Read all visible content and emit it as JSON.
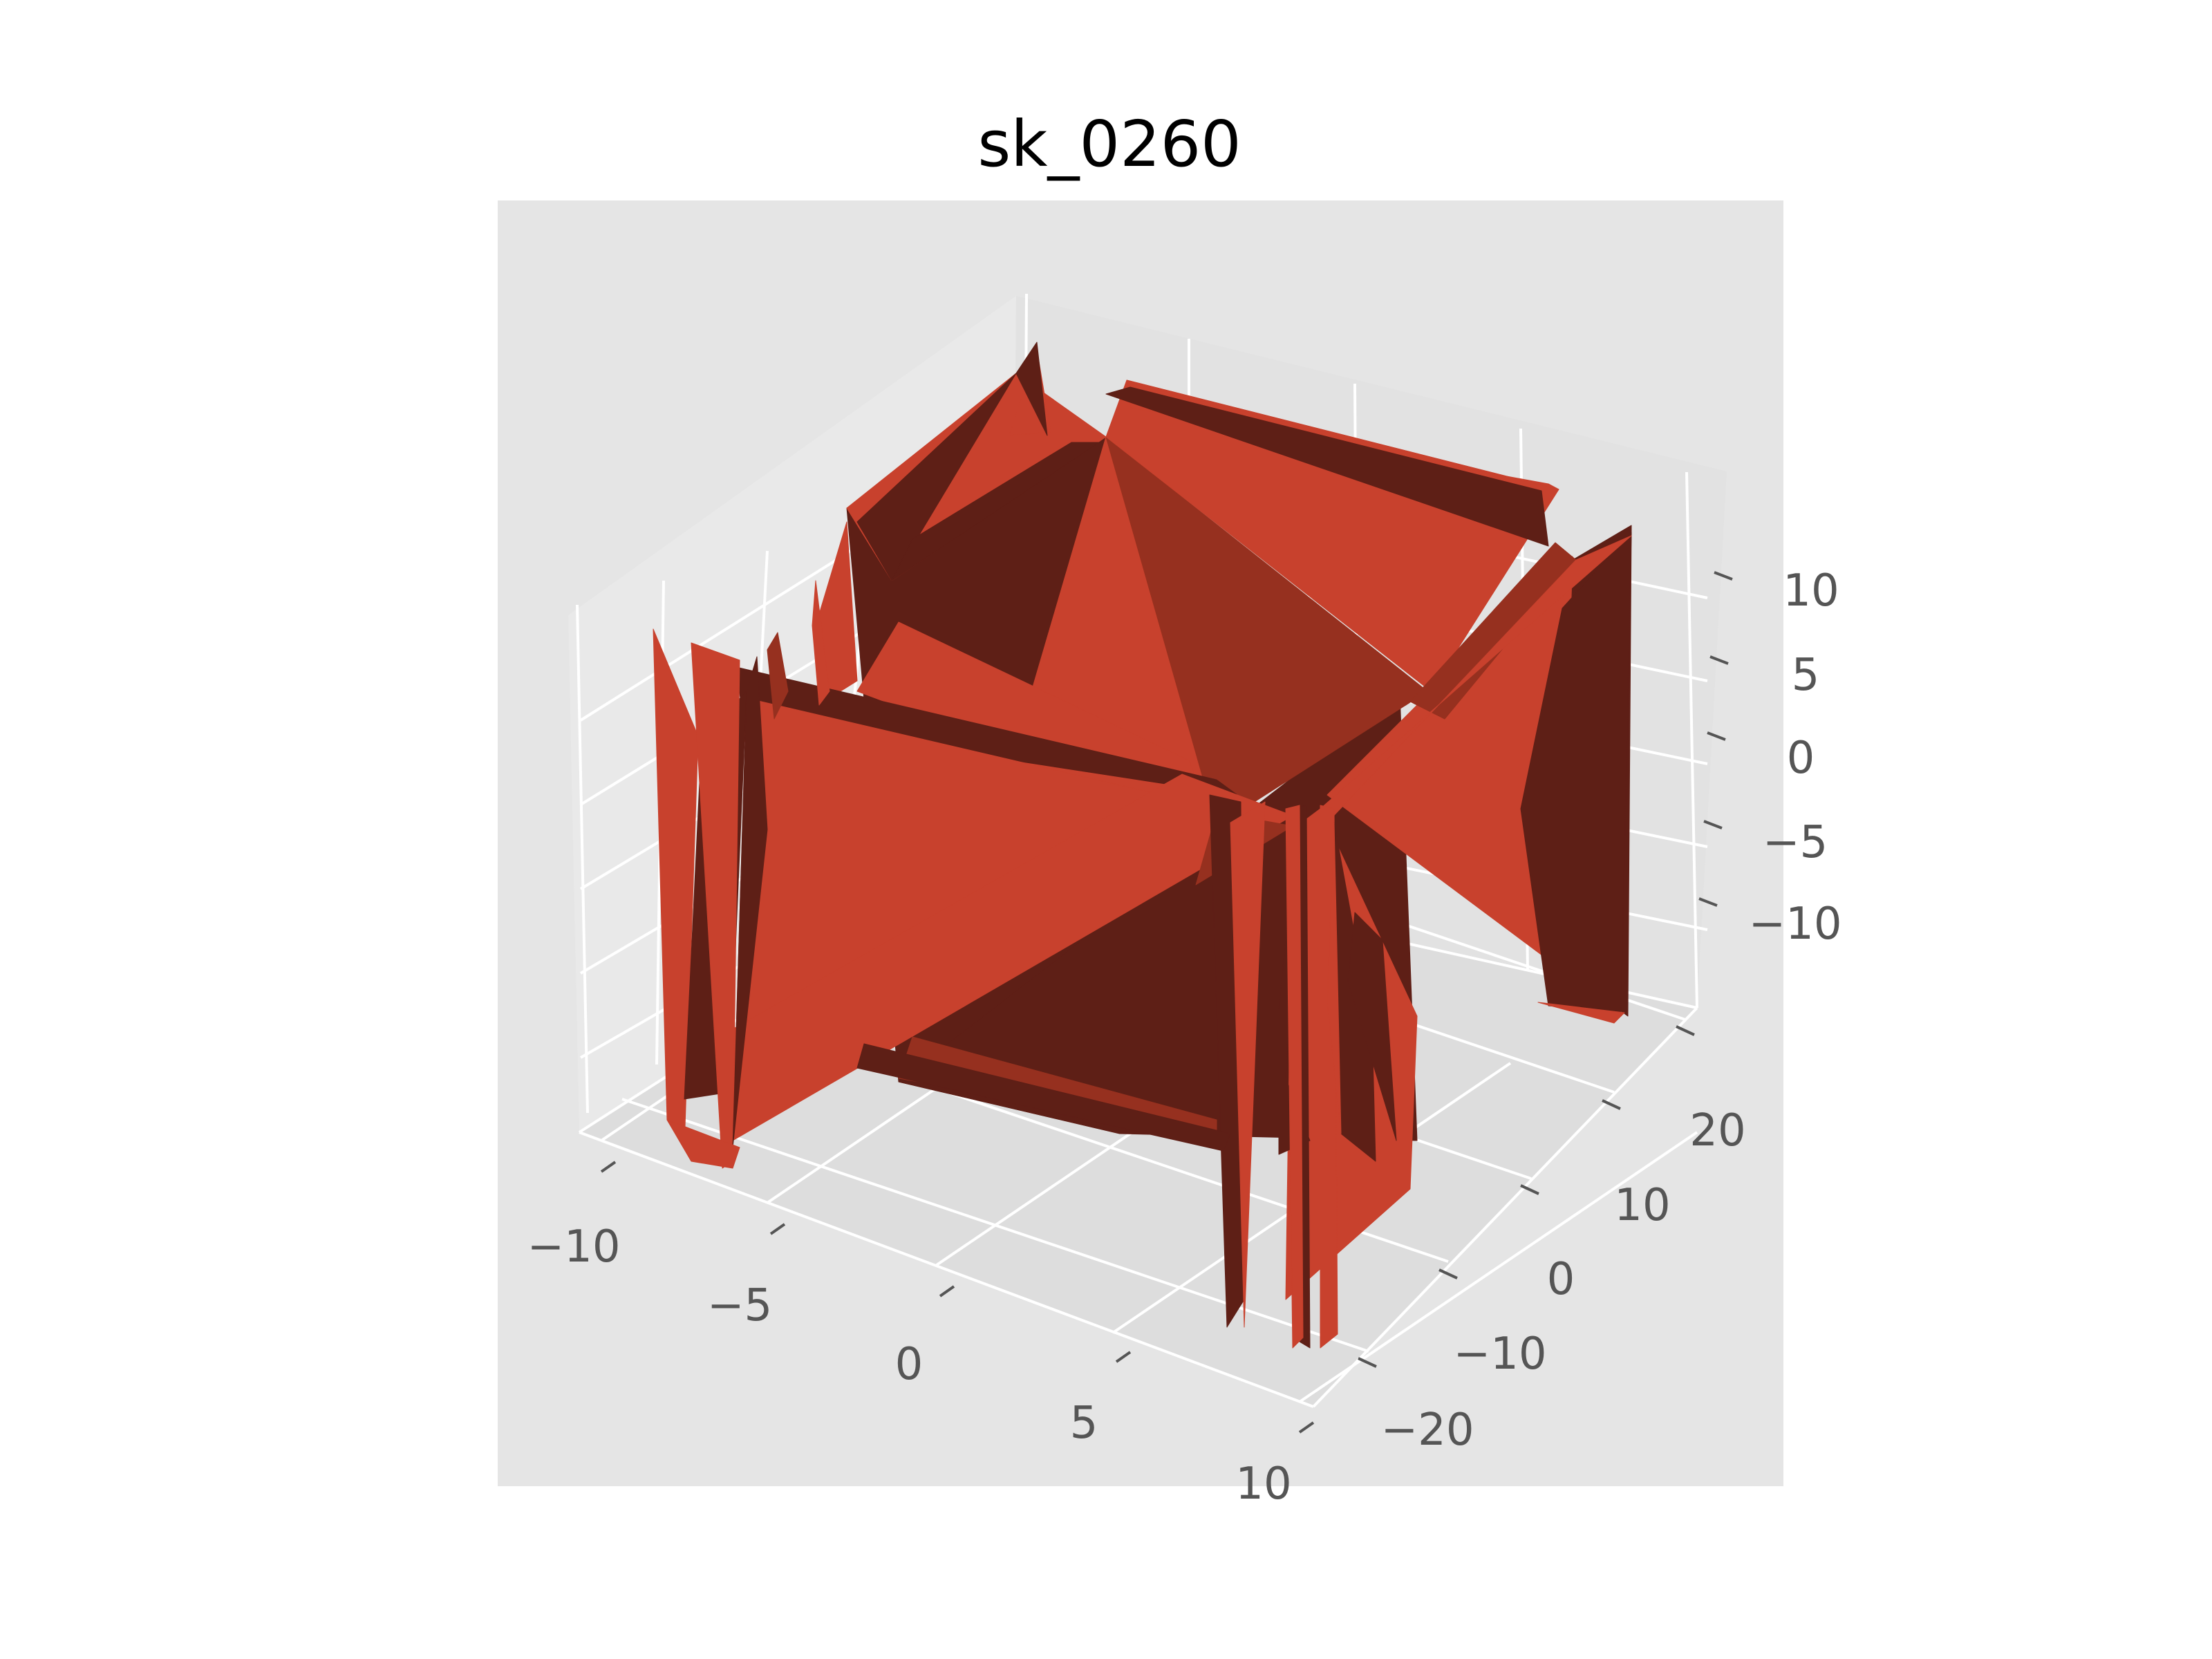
{
  "chart_data": {
    "type": "surface3d",
    "title": "sk_0260",
    "xlabel": "",
    "ylabel": "",
    "zlabel": "",
    "x_ticks": [
      "−10",
      "−5",
      "0",
      "5",
      "10"
    ],
    "y_ticks": [
      "−20",
      "−10",
      "0",
      "10",
      "20"
    ],
    "z_ticks": [
      "−10",
      "−5",
      "0",
      "5",
      "10"
    ],
    "xlim": [
      -10,
      10
    ],
    "ylim": [
      -25,
      25
    ],
    "zlim": [
      -15,
      15
    ],
    "grid": true,
    "style": "ggplot",
    "pane_color": "#e5e5e5",
    "surface_color": "#c8412d",
    "surface_dark": "#5e1f16",
    "surface_mid": "#96301f",
    "description": "triangulated surface forming an open box of four near-vertical walls around a sunken centre"
  }
}
